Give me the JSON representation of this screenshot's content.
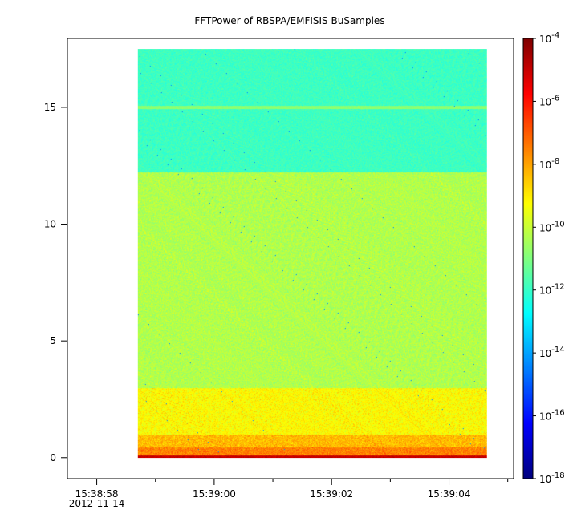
{
  "chart_data": {
    "type": "heatmap",
    "title": "FFTPower of RBSPA/EMFISIS  BuSamples",
    "xlabel": "",
    "ylabel": "",
    "x_axis": {
      "start_seconds": 58.0,
      "end_seconds": 65.6,
      "major_ticks": [
        {
          "value": 58.5,
          "label": "15:38:58",
          "sublabel": "2012-11-14"
        },
        {
          "value": 60.5,
          "label": "15:39:00"
        },
        {
          "value": 62.5,
          "label": "15:39:02"
        },
        {
          "value": 64.5,
          "label": "15:39:04"
        }
      ],
      "minor_ticks": [
        59.5,
        61.5,
        63.5,
        65.5
      ]
    },
    "y_axis": {
      "ylim": [
        -0.9,
        17.95
      ],
      "ticks": [
        0,
        5,
        10,
        15
      ]
    },
    "data_extent": {
      "x": [
        59.2,
        65.15
      ],
      "y": [
        0,
        17.5
      ]
    },
    "colorbar": {
      "scale": "log",
      "range": [
        1e-18,
        0.0001
      ],
      "ticks": [
        {
          "exp": -4,
          "label_base": "10",
          "label_exp": "-4"
        },
        {
          "exp": -6,
          "label_base": "10",
          "label_exp": "-6"
        },
        {
          "exp": -8,
          "label_base": "10",
          "label_exp": "-8"
        },
        {
          "exp": -10,
          "label_base": "10",
          "label_exp": "-10"
        },
        {
          "exp": -12,
          "label_base": "10",
          "label_exp": "-12"
        },
        {
          "exp": -14,
          "label_base": "10",
          "label_exp": "-14"
        },
        {
          "exp": -16,
          "label_base": "10",
          "label_exp": "-16"
        },
        {
          "exp": -18,
          "label_base": "10",
          "label_exp": "-18"
        }
      ]
    },
    "bands": [
      {
        "y0": 0.0,
        "y1": 0.12,
        "log_power": -5.0,
        "spread": 0.3
      },
      {
        "y0": 0.12,
        "y1": 0.45,
        "log_power": -7.5,
        "spread": 0.6
      },
      {
        "y0": 0.45,
        "y1": 1.0,
        "log_power": -8.3,
        "spread": 0.6
      },
      {
        "y0": 1.0,
        "y1": 3.0,
        "log_power": -9.2,
        "spread": 0.6
      },
      {
        "y0": 3.0,
        "y1": 12.2,
        "log_power": -10.3,
        "spread": 0.5
      },
      {
        "y0": 12.2,
        "y1": 17.5,
        "log_power": -11.9,
        "spread": 0.35
      },
      {
        "y0": 14.93,
        "y1": 15.07,
        "log_power": -10.8,
        "spread": 0.2
      }
    ]
  }
}
